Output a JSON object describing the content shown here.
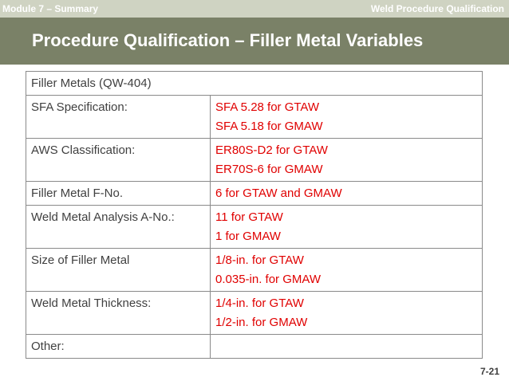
{
  "header": {
    "module": "Module 7 – Summary",
    "section": "Weld Procedure Qualification"
  },
  "slide": {
    "title": "Procedure Qualification – Filler Metal Variables",
    "page_number": "7-21"
  },
  "table": {
    "heading": "Filler Metals (QW-404)",
    "rows": [
      {
        "label": "SFA Specification:",
        "values": [
          "SFA 5.28 for GTAW",
          "SFA 5.18 for GMAW"
        ]
      },
      {
        "label": "AWS Classification:",
        "values": [
          "ER80S-D2 for GTAW",
          "ER70S-6 for GMAW"
        ]
      },
      {
        "label": "Filler Metal F-No.",
        "values": [
          "6 for GTAW and GMAW"
        ]
      },
      {
        "label": "Weld Metal Analysis A-No.:",
        "values": [
          "11 for GTAW",
          "1 for GMAW"
        ]
      },
      {
        "label": "Size of Filler Metal",
        "values": [
          "1/8-in. for GTAW",
          "0.035-in. for GMAW"
        ]
      },
      {
        "label": "Weld Metal Thickness:",
        "values": [
          "1/4-in. for GTAW",
          "1/2-in. for GMAW"
        ]
      },
      {
        "label": "Other:",
        "values": [
          ""
        ]
      }
    ]
  },
  "colors": {
    "title_bar": "#7a8167",
    "top_bar": "#cfd3c2",
    "value_text": "#e00000"
  }
}
